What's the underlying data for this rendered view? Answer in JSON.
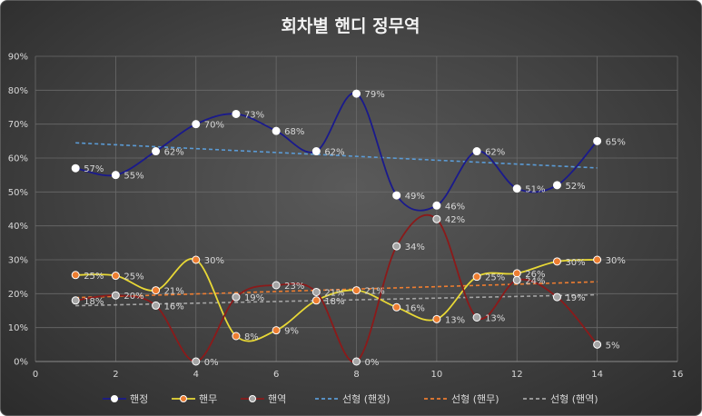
{
  "chart_data": {
    "type": "line",
    "title": "회차별 핸디 정무역",
    "xlim": [
      0,
      16
    ],
    "ylim": [
      0,
      0.9
    ],
    "x_ticks": [
      "0",
      "2",
      "4",
      "6",
      "8",
      "10",
      "12",
      "14",
      "16"
    ],
    "y_ticks": [
      "0%",
      "10%",
      "20%",
      "30%",
      "40%",
      "50%",
      "60%",
      "70%",
      "80%",
      "90%"
    ],
    "grid": true,
    "legend_position": "bottom",
    "x": [
      1,
      2,
      3,
      4,
      5,
      6,
      7,
      8,
      9,
      10,
      11,
      12,
      13,
      14
    ],
    "series": [
      {
        "name": "핸정",
        "color": "#1a1a8c",
        "marker_fill": "#ffffff",
        "values": [
          0.57,
          0.55,
          0.62,
          0.7,
          0.73,
          0.68,
          0.62,
          0.79,
          0.49,
          0.46,
          0.62,
          0.51,
          0.52,
          0.65
        ],
        "labels": [
          "57%",
          "55%",
          "62%",
          "70%",
          "73%",
          "68%",
          "62%",
          "79%",
          "49%",
          "46%",
          "62%",
          "51%",
          "52%",
          "65%"
        ]
      },
      {
        "name": "핸무",
        "color": "#e8d836",
        "marker_fill": "#ed7d31",
        "values": [
          0.255,
          0.253,
          0.21,
          0.3,
          0.075,
          0.092,
          0.18,
          0.21,
          0.16,
          0.125,
          0.25,
          0.26,
          0.295,
          0.3
        ],
        "labels": [
          "25%",
          "25%",
          "21%",
          "30%",
          "8%",
          "9%",
          "18%",
          "21%",
          "16%",
          "13%",
          "25%",
          "26%",
          "30%",
          "30%"
        ]
      },
      {
        "name": "핸역",
        "color": "#8b1a1a",
        "marker_fill": "#a5a5a5",
        "values": [
          0.18,
          0.195,
          0.165,
          0.0,
          0.19,
          0.225,
          0.205,
          0.0,
          0.34,
          0.42,
          0.13,
          0.24,
          0.19,
          0.05
        ],
        "labels": [
          "18%",
          "20%",
          "16%",
          "0%",
          "19%",
          "23%",
          "21%",
          "0%",
          "34%",
          "42%",
          "13%",
          "24%",
          "19%",
          "5%"
        ]
      }
    ],
    "trendlines": [
      {
        "name": "선형 (핸정)",
        "color": "#5b9bd5"
      },
      {
        "name": "선형 (핸무)",
        "color": "#ed7d31"
      },
      {
        "name": "선형 (핸역)",
        "color": "#a5a5a5"
      }
    ]
  }
}
